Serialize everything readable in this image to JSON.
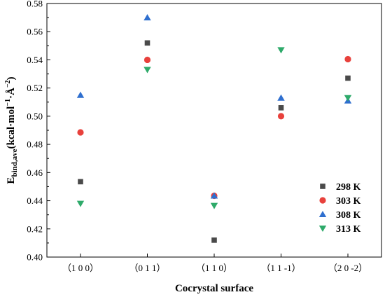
{
  "chart_data": {
    "type": "scatter",
    "categories": [
      "（1 0 0）",
      "（0 1 1）",
      "（1 1 0）",
      "（1 1 -1）",
      "（2 0 -2）"
    ],
    "xlabel": "Cocrystal surface",
    "ylabel": {
      "main": "E",
      "sub": "bind,ave",
      "unit_pre": "(kcal·mol",
      "sup1": "−1",
      "unit_mid": "·Å",
      "sup2": "−2",
      "unit_post": ")"
    },
    "ylim": [
      0.4,
      0.58
    ],
    "yticks": [
      "0.40",
      "0.42",
      "0.44",
      "0.46",
      "0.48",
      "0.50",
      "0.52",
      "0.54",
      "0.56",
      "0.58"
    ],
    "grid": false,
    "legend_position": "bottom-right",
    "series": [
      {
        "name": "298 K",
        "marker": "square",
        "color": "#4a4a4a",
        "values": [
          0.4535,
          0.552,
          0.412,
          0.506,
          0.527
        ]
      },
      {
        "name": "303 K",
        "marker": "circle",
        "color": "#e8413c",
        "values": [
          0.4885,
          0.54,
          0.4435,
          0.5,
          0.5405
        ]
      },
      {
        "name": "308 K",
        "marker": "triangle-up",
        "color": "#2f6fcf",
        "values": [
          0.515,
          0.57,
          0.4435,
          0.513,
          0.511
        ]
      },
      {
        "name": "313 K",
        "marker": "triangle-down",
        "color": "#2eaa6a",
        "values": [
          0.438,
          0.533,
          0.4365,
          0.547,
          0.513
        ]
      }
    ]
  }
}
